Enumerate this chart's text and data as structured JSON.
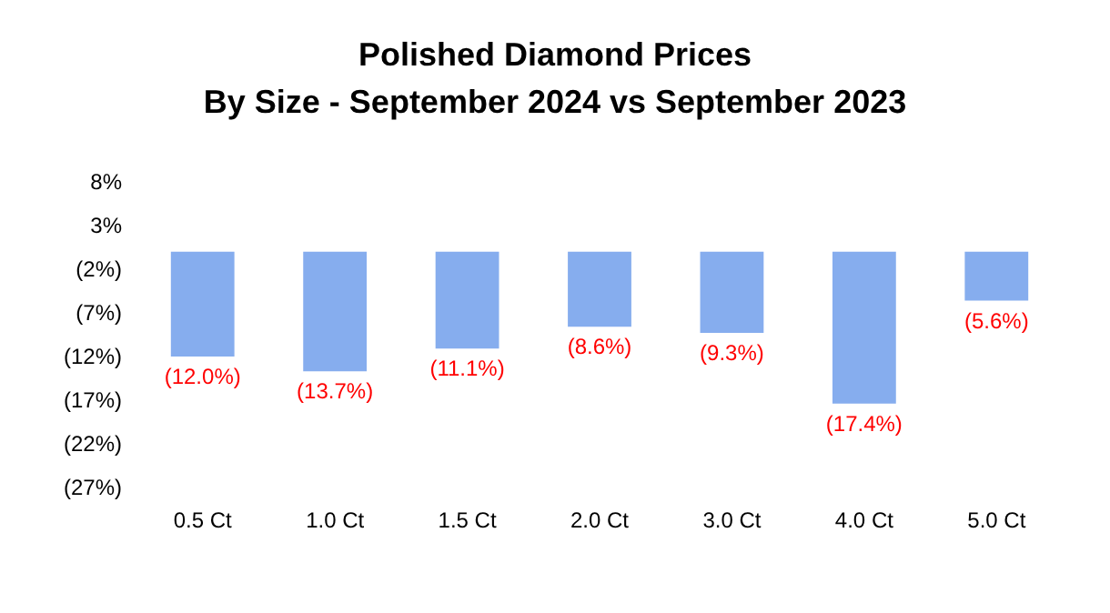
{
  "chart_data": {
    "type": "bar",
    "title": "Polished Diamond Prices\nBy Size - September 2024 vs September 2023",
    "categories": [
      "0.5 Ct",
      "1.0 Ct",
      "1.5 Ct",
      "2.0 Ct",
      "3.0 Ct",
      "4.0 Ct",
      "5.0 Ct"
    ],
    "values": [
      -12.0,
      -13.7,
      -11.1,
      -8.6,
      -9.3,
      -17.4,
      -5.6
    ],
    "value_labels": [
      "(12.0%)",
      "(13.7%)",
      "(11.1%)",
      "(8.6%)",
      "(9.3%)",
      "(17.4%)",
      "(5.6%)"
    ],
    "color": "#86adee",
    "ylim": [
      -27,
      8
    ],
    "yticks": [
      {
        "value": 8,
        "label": "8%"
      },
      {
        "value": 3,
        "label": "3%"
      },
      {
        "value": -2,
        "label": "(2%)"
      },
      {
        "value": -7,
        "label": "(7%)"
      },
      {
        "value": -12,
        "label": "(12%)"
      },
      {
        "value": -17,
        "label": "(17%)"
      },
      {
        "value": -22,
        "label": "(22%)"
      },
      {
        "value": -27,
        "label": "(27%)"
      }
    ],
    "grid": false
  }
}
